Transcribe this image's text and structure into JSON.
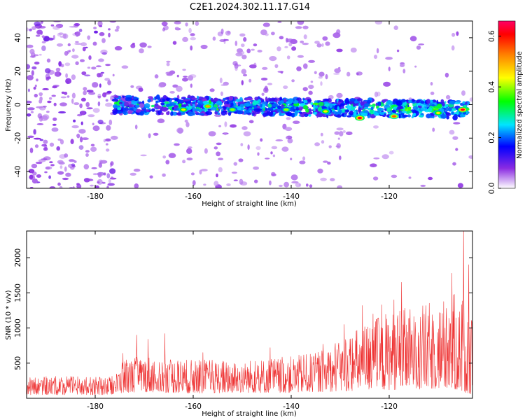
{
  "title": "C2E1.2024.302.11.17.G14",
  "chart_data": [
    {
      "type": "heatmap",
      "xlabel": "Height of straight line (km)",
      "ylabel": "Frequency (Hz)",
      "xlim": [
        -194,
        -103
      ],
      "ylim": [
        -50,
        50
      ],
      "x_ticks": [
        -180,
        -160,
        -140,
        -120
      ],
      "y_ticks": [
        -40,
        -20,
        0,
        20,
        40
      ],
      "colorbar": {
        "label": "Normalized spectral amplitude",
        "range": [
          0.0,
          0.66
        ],
        "ticks": [
          "0.0",
          "0.2",
          "0.4",
          "0.6"
        ],
        "colors": [
          "#ffffff",
          "#8a2be2",
          "#0000ff",
          "#00e5ff",
          "#00ff00",
          "#ffff00",
          "#ff7f00",
          "#ff0000",
          "#ff0066"
        ]
      },
      "signal_band": {
        "x_range": [
          -176,
          -104
        ],
        "frequency_center_at_start": 0,
        "frequency_center_at_end": -3,
        "half_width_hz": 5
      },
      "hot_spots": [
        {
          "x": -162,
          "y": -3,
          "level": 0.45
        },
        {
          "x": -157,
          "y": -1,
          "level": 0.5
        },
        {
          "x": -152,
          "y": -3,
          "level": 0.4
        },
        {
          "x": -141,
          "y": -3,
          "level": 0.4
        },
        {
          "x": -133,
          "y": -4,
          "level": 0.45
        },
        {
          "x": -126,
          "y": -8,
          "level": 0.62
        },
        {
          "x": -119,
          "y": -7,
          "level": 0.55
        },
        {
          "x": -110,
          "y": -5,
          "level": 0.45
        },
        {
          "x": -105,
          "y": -3,
          "level": 0.62
        }
      ]
    },
    {
      "type": "line",
      "xlabel": "Height of straight line (km)",
      "ylabel": "SNR (10 * v/v)",
      "xlim": [
        -194,
        -103
      ],
      "ylim": [
        0,
        2380
      ],
      "x_ticks": [
        -180,
        -160,
        -140,
        -120
      ],
      "y_ticks": [
        500,
        1000,
        1500,
        2000
      ],
      "series": [
        {
          "color": "#ee3333",
          "envelope": {
            "x": [
              -194,
              -186,
              -178,
              -176,
              -174,
              -170,
              -160,
              -150,
              -140,
              -135,
              -130,
              -125,
              -120,
              -115,
              -110,
              -107,
              -105,
              -103
            ],
            "lower": [
              50,
              50,
              50,
              60,
              80,
              90,
              70,
              80,
              80,
              90,
              100,
              110,
              120,
              130,
              130,
              120,
              100,
              40
            ],
            "upper": [
              300,
              320,
              300,
              330,
              560,
              620,
              550,
              550,
              600,
              650,
              800,
              1100,
              1250,
              1300,
              1400,
              1500,
              1450,
              1100
            ]
          },
          "peaks": [
            {
              "x": -174.3,
              "y": 640
            },
            {
              "x": -171.5,
              "y": 900
            },
            {
              "x": -169.2,
              "y": 840
            },
            {
              "x": -165.8,
              "y": 920
            },
            {
              "x": -158.0,
              "y": 650
            },
            {
              "x": -144.3,
              "y": 720
            },
            {
              "x": -133.5,
              "y": 770
            },
            {
              "x": -131.0,
              "y": 780
            },
            {
              "x": -129.2,
              "y": 1050
            },
            {
              "x": -127.5,
              "y": 850
            },
            {
              "x": -125.5,
              "y": 1320
            },
            {
              "x": -123.3,
              "y": 1200
            },
            {
              "x": -121.5,
              "y": 1330
            },
            {
              "x": -119.0,
              "y": 1400
            },
            {
              "x": -117.5,
              "y": 1650
            },
            {
              "x": -111.0,
              "y": 1100
            },
            {
              "x": -108.6,
              "y": 1000
            },
            {
              "x": -107.2,
              "y": 1780
            },
            {
              "x": -105.8,
              "y": 1150
            },
            {
              "x": -104.8,
              "y": 2380
            },
            {
              "x": -103.8,
              "y": 1900
            }
          ]
        }
      ]
    }
  ]
}
